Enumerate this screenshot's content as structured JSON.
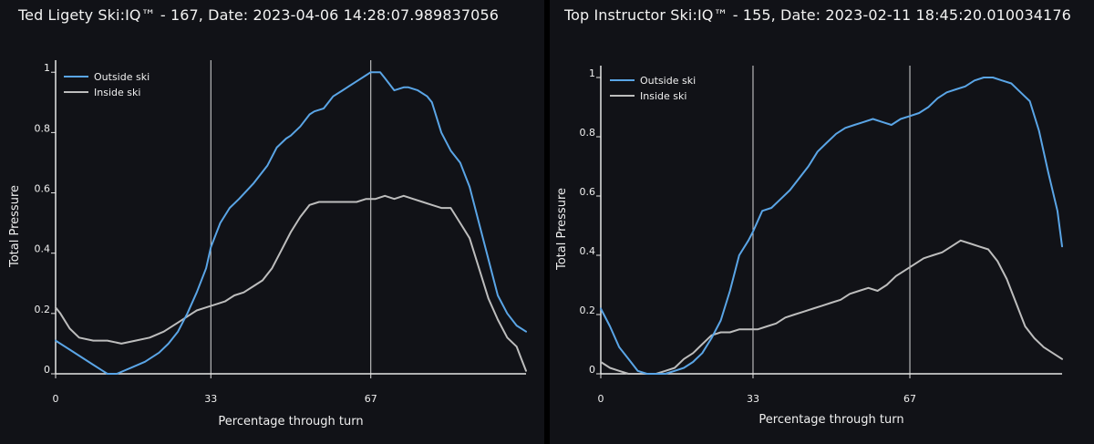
{
  "chart_data": [
    {
      "type": "line",
      "title": "Ted Ligety Ski:IQ™ - 167, Date: 2023-04-06 14:28:07.989837056",
      "xlabel": "Percentage through turn",
      "ylabel": "Total Pressure",
      "xlim": [
        0,
        100
      ],
      "ylim": [
        0,
        1.04
      ],
      "xticks": [
        0,
        33,
        67
      ],
      "yticks": [
        0,
        0.2,
        0.4,
        0.6,
        0.8,
        1
      ],
      "ytick_labels": [
        "0",
        "0.2",
        "0.4",
        "0.6",
        "0.8",
        "1"
      ],
      "vlines": [
        33,
        67
      ],
      "legend": "top-left",
      "series": [
        {
          "name": "Outside ski",
          "color": "#5aa5e6",
          "x": [
            0,
            3,
            6,
            8,
            10,
            11,
            13,
            16,
            19,
            22,
            24,
            26,
            28,
            30,
            32,
            33,
            35,
            37,
            39,
            42,
            45,
            47,
            49,
            50,
            52,
            54,
            55,
            57,
            58,
            59,
            61,
            62,
            64,
            66,
            67,
            69,
            70,
            72,
            74,
            75,
            77,
            79,
            80,
            82,
            84,
            86,
            88,
            90,
            92,
            94,
            96,
            98,
            100
          ],
          "y": [
            0.11,
            0.08,
            0.05,
            0.03,
            0.01,
            0.0,
            0.0,
            0.02,
            0.04,
            0.07,
            0.1,
            0.14,
            0.2,
            0.27,
            0.35,
            0.42,
            0.5,
            0.55,
            0.58,
            0.63,
            0.69,
            0.75,
            0.78,
            0.79,
            0.82,
            0.86,
            0.87,
            0.88,
            0.9,
            0.92,
            0.94,
            0.95,
            0.97,
            0.99,
            1.0,
            1.0,
            0.98,
            0.94,
            0.95,
            0.95,
            0.94,
            0.92,
            0.9,
            0.8,
            0.74,
            0.7,
            0.62,
            0.5,
            0.38,
            0.26,
            0.2,
            0.16,
            0.14
          ]
        },
        {
          "name": "Inside ski",
          "color": "#bdbdbd",
          "x": [
            0,
            1,
            3,
            5,
            8,
            11,
            14,
            17,
            20,
            23,
            26,
            29,
            30,
            32,
            34,
            36,
            38,
            40,
            42,
            44,
            46,
            48,
            50,
            52,
            54,
            56,
            58,
            60,
            62,
            64,
            66,
            68,
            70,
            72,
            74,
            76,
            78,
            80,
            82,
            84,
            86,
            88,
            90,
            92,
            94,
            96,
            98,
            99,
            100
          ],
          "y": [
            0.22,
            0.2,
            0.15,
            0.12,
            0.11,
            0.11,
            0.1,
            0.11,
            0.12,
            0.14,
            0.17,
            0.2,
            0.21,
            0.22,
            0.23,
            0.24,
            0.26,
            0.27,
            0.29,
            0.31,
            0.35,
            0.41,
            0.47,
            0.52,
            0.56,
            0.57,
            0.57,
            0.57,
            0.57,
            0.57,
            0.58,
            0.58,
            0.59,
            0.58,
            0.59,
            0.58,
            0.57,
            0.56,
            0.55,
            0.55,
            0.5,
            0.45,
            0.35,
            0.25,
            0.18,
            0.12,
            0.09,
            0.05,
            0.01
          ]
        }
      ]
    },
    {
      "type": "line",
      "title": "Top Instructor Ski:IQ™ - 155, Date: 2023-02-11 18:45:20.010034176",
      "xlabel": "Percentage through turn",
      "ylabel": "Total Pressure",
      "xlim": [
        0,
        100
      ],
      "ylim": [
        0,
        1.04
      ],
      "xticks": [
        0,
        33,
        67
      ],
      "yticks": [
        0,
        0.2,
        0.4,
        0.6,
        0.8,
        1
      ],
      "ytick_labels": [
        "0",
        "0.2",
        "0.4",
        "0.6",
        "0.8",
        "1"
      ],
      "vlines": [
        33,
        67
      ],
      "legend": "top-left",
      "series": [
        {
          "name": "Outside ski",
          "color": "#5aa5e6",
          "x": [
            0,
            2,
            4,
            6,
            8,
            10,
            12,
            14,
            16,
            18,
            20,
            22,
            24,
            26,
            28,
            30,
            32,
            33,
            35,
            37,
            39,
            41,
            43,
            45,
            47,
            49,
            51,
            53,
            55,
            57,
            59,
            61,
            63,
            65,
            67,
            69,
            71,
            73,
            75,
            77,
            79,
            81,
            83,
            85,
            87,
            89,
            91,
            93,
            95,
            97,
            99,
            100
          ],
          "y": [
            0.22,
            0.16,
            0.09,
            0.05,
            0.01,
            0.0,
            0.0,
            0.0,
            0.01,
            0.02,
            0.04,
            0.07,
            0.12,
            0.18,
            0.28,
            0.4,
            0.45,
            0.48,
            0.55,
            0.56,
            0.59,
            0.62,
            0.66,
            0.7,
            0.75,
            0.78,
            0.81,
            0.83,
            0.84,
            0.85,
            0.86,
            0.85,
            0.84,
            0.86,
            0.87,
            0.88,
            0.9,
            0.93,
            0.95,
            0.96,
            0.97,
            0.99,
            1.0,
            1.0,
            0.99,
            0.98,
            0.95,
            0.92,
            0.82,
            0.68,
            0.55,
            0.43
          ]
        },
        {
          "name": "Inside ski",
          "color": "#bdbdbd",
          "x": [
            0,
            2,
            4,
            6,
            8,
            10,
            12,
            14,
            16,
            18,
            20,
            22,
            24,
            26,
            28,
            30,
            32,
            34,
            36,
            38,
            40,
            42,
            44,
            46,
            48,
            50,
            52,
            54,
            56,
            58,
            60,
            62,
            64,
            66,
            68,
            70,
            72,
            74,
            76,
            78,
            80,
            82,
            84,
            86,
            88,
            90,
            92,
            94,
            96,
            98,
            100
          ],
          "y": [
            0.04,
            0.02,
            0.01,
            0.0,
            0.0,
            0.0,
            0.0,
            0.01,
            0.02,
            0.05,
            0.07,
            0.1,
            0.13,
            0.14,
            0.14,
            0.15,
            0.15,
            0.15,
            0.16,
            0.17,
            0.19,
            0.2,
            0.21,
            0.22,
            0.23,
            0.24,
            0.25,
            0.27,
            0.28,
            0.29,
            0.28,
            0.3,
            0.33,
            0.35,
            0.37,
            0.39,
            0.4,
            0.41,
            0.43,
            0.45,
            0.44,
            0.43,
            0.42,
            0.38,
            0.32,
            0.24,
            0.16,
            0.12,
            0.09,
            0.07,
            0.05
          ]
        }
      ]
    }
  ]
}
